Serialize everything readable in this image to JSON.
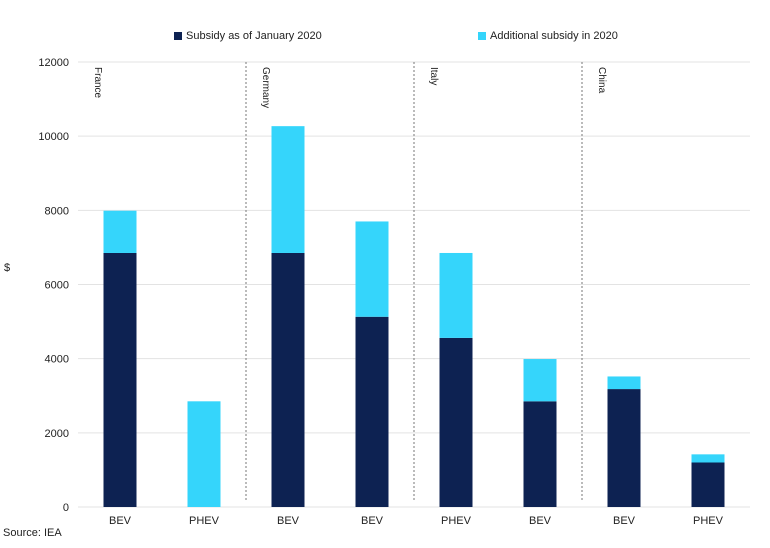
{
  "chart_data": {
    "type": "bar",
    "stacked": true,
    "ylabel": "$",
    "ylim": [
      0,
      12000
    ],
    "yticks": [
      0,
      2000,
      4000,
      6000,
      8000,
      10000,
      12000
    ],
    "grid": true,
    "legend_position": "top",
    "groups": [
      {
        "name": "France",
        "categories": [
          "BEV",
          "PHEV"
        ]
      },
      {
        "name": "Germany",
        "categories": [
          "BEV",
          "BEV"
        ]
      },
      {
        "name": "Italy",
        "categories": [
          "PHEV",
          "BEV"
        ]
      },
      {
        "name": "China",
        "categories": [
          "BEV",
          "PHEV"
        ]
      }
    ],
    "categories": [
      "BEV",
      "PHEV",
      "BEV",
      "BEV",
      "PHEV",
      "BEV",
      "BEV",
      "PHEV"
    ],
    "series": [
      {
        "name": "Subsidy as of January 2020",
        "color": "#0d2252",
        "values": [
          6850,
          0,
          6850,
          5130,
          4560,
          2850,
          3180,
          1200
        ]
      },
      {
        "name": "Additional subsidy in 2020",
        "color": "#35d5fb",
        "values": [
          1140,
          2850,
          3420,
          2570,
          2290,
          1140,
          340,
          220
        ]
      }
    ]
  },
  "source": "Source: IEA"
}
